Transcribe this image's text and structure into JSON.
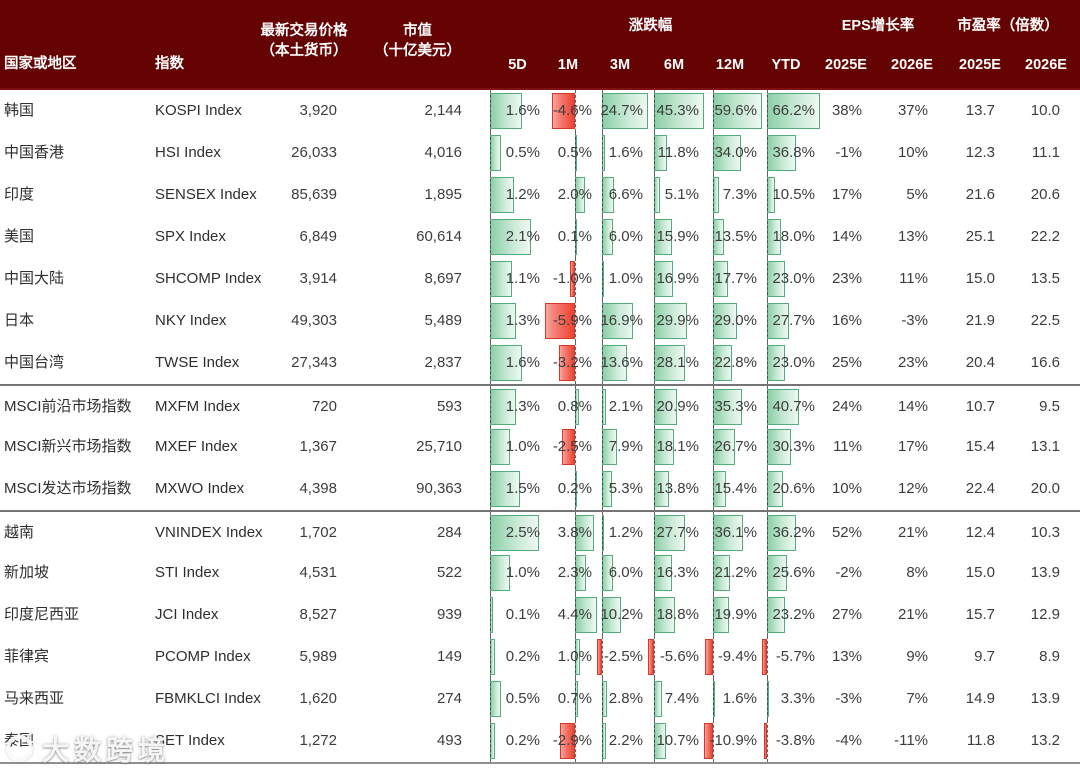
{
  "header": {
    "country": "国家或地区",
    "index": "指数",
    "price_l1": "最新交易价格",
    "price_l2": "（本土货币）",
    "mktcap_l1": "市值",
    "mktcap_l2": "（十亿美元）",
    "group_change": "涨跌幅",
    "group_eps": "EPS增长率",
    "group_pe": "市盈率（倍数）",
    "sub": {
      "d5": "5D",
      "m1": "1M",
      "m3": "3M",
      "m6": "6M",
      "m12": "12M",
      "ytd": "YTD",
      "eps1": "2025E",
      "eps2": "2026E",
      "pe1": "2025E",
      "pe2": "2026E"
    }
  },
  "chart_data": {
    "type": "table",
    "columns": [
      "国家或地区",
      "指数",
      "最新交易价格（本土货币）",
      "市值（十亿美元）",
      "涨跌幅 5D",
      "涨跌幅 1M",
      "涨跌幅 3M",
      "涨跌幅 6M",
      "涨跌幅 12M",
      "涨跌幅 YTD",
      "EPS增长率 2025E",
      "EPS增长率 2026E",
      "市盈率（倍数）2025E",
      "市盈率（倍数）2026E"
    ],
    "pct_keys": [
      "5d",
      "1m",
      "3m",
      "6m",
      "12m",
      "ytd"
    ],
    "rows": [
      {
        "region": "韩国",
        "index_name": "KOSPI Index",
        "price": "3,920",
        "mktcap": "2,144",
        "pct": [
          1.6,
          -4.6,
          24.7,
          45.3,
          59.6,
          66.2
        ],
        "eps": [
          38,
          37
        ],
        "pe": [
          13.7,
          10.0
        ],
        "section": 0
      },
      {
        "region": "中国香港",
        "index_name": "HSI Index",
        "price": "26,033",
        "mktcap": "4,016",
        "pct": [
          0.5,
          0.5,
          1.6,
          11.8,
          34.0,
          36.8
        ],
        "eps": [
          -1,
          10
        ],
        "pe": [
          12.3,
          11.1
        ],
        "section": 0
      },
      {
        "region": "印度",
        "index_name": "SENSEX Index",
        "price": "85,639",
        "mktcap": "1,895",
        "pct": [
          1.2,
          2.0,
          6.6,
          5.1,
          7.3,
          10.5
        ],
        "eps": [
          17,
          5
        ],
        "pe": [
          21.6,
          20.6
        ],
        "section": 0
      },
      {
        "region": "美国",
        "index_name": "SPX Index",
        "price": "6,849",
        "mktcap": "60,614",
        "pct": [
          2.1,
          0.1,
          6.0,
          15.9,
          13.5,
          18.0
        ],
        "eps": [
          14,
          13
        ],
        "pe": [
          25.1,
          22.2
        ],
        "section": 0
      },
      {
        "region": "中国大陆",
        "index_name": "SHCOMP Index",
        "price": "3,914",
        "mktcap": "8,697",
        "pct": [
          1.1,
          -1.0,
          1.0,
          16.9,
          17.7,
          23.0
        ],
        "eps": [
          23,
          11
        ],
        "pe": [
          15.0,
          13.5
        ],
        "section": 0
      },
      {
        "region": "日本",
        "index_name": "NKY Index",
        "price": "49,303",
        "mktcap": "5,489",
        "pct": [
          1.3,
          -5.9,
          16.9,
          29.9,
          29.0,
          27.7
        ],
        "eps": [
          16,
          -3
        ],
        "pe": [
          21.9,
          22.5
        ],
        "section": 0
      },
      {
        "region": "中国台湾",
        "index_name": "TWSE Index",
        "price": "27,343",
        "mktcap": "2,837",
        "pct": [
          1.6,
          -3.2,
          13.6,
          28.1,
          22.8,
          23.0
        ],
        "eps": [
          25,
          23
        ],
        "pe": [
          20.4,
          16.6
        ],
        "section": 0
      },
      {
        "region": "MSCI前沿市场指数",
        "index_name": "MXFM Index",
        "price": "720",
        "mktcap": "593",
        "pct": [
          1.3,
          0.8,
          2.1,
          20.9,
          35.3,
          40.7
        ],
        "eps": [
          24,
          14
        ],
        "pe": [
          10.7,
          9.5
        ],
        "section": 1
      },
      {
        "region": "MSCI新兴市场指数",
        "index_name": "MXEF Index",
        "price": "1,367",
        "mktcap": "25,710",
        "pct": [
          1.0,
          -2.5,
          7.9,
          18.1,
          26.7,
          30.3
        ],
        "eps": [
          11,
          17
        ],
        "pe": [
          15.4,
          13.1
        ],
        "section": 1
      },
      {
        "region": "MSCI发达市场指数",
        "index_name": "MXWO Index",
        "price": "4,398",
        "mktcap": "90,363",
        "pct": [
          1.5,
          0.2,
          5.3,
          13.8,
          15.4,
          20.6
        ],
        "eps": [
          10,
          12
        ],
        "pe": [
          22.4,
          20.0
        ],
        "section": 1
      },
      {
        "region": "越南",
        "index_name": "VNINDEX Index",
        "price": "1,702",
        "mktcap": "284",
        "pct": [
          2.5,
          3.8,
          1.2,
          27.7,
          36.1,
          36.2
        ],
        "eps": [
          52,
          21
        ],
        "pe": [
          12.4,
          10.3
        ],
        "section": 2
      },
      {
        "region": "新加坡",
        "index_name": "STI Index",
        "price": "4,531",
        "mktcap": "522",
        "pct": [
          1.0,
          2.3,
          6.0,
          16.3,
          21.2,
          25.6
        ],
        "eps": [
          -2,
          8
        ],
        "pe": [
          15.0,
          13.9
        ],
        "section": 2
      },
      {
        "region": "印度尼西亚",
        "index_name": "JCI Index",
        "price": "8,527",
        "mktcap": "939",
        "pct": [
          0.1,
          4.4,
          10.2,
          18.8,
          19.9,
          23.2
        ],
        "eps": [
          27,
          21
        ],
        "pe": [
          15.7,
          12.9
        ],
        "section": 2
      },
      {
        "region": "菲律宾",
        "index_name": "PCOMP Index",
        "price": "5,989",
        "mktcap": "149",
        "pct": [
          0.2,
          1.0,
          -2.5,
          -5.6,
          -9.4,
          -5.7
        ],
        "eps": [
          13,
          9
        ],
        "pe": [
          9.7,
          8.9
        ],
        "section": 2
      },
      {
        "region": "马来西亚",
        "index_name": "FBMKLCI Index",
        "price": "1,620",
        "mktcap": "274",
        "pct": [
          0.5,
          0.7,
          2.8,
          7.4,
          1.6,
          3.3
        ],
        "eps": [
          -3,
          7
        ],
        "pe": [
          14.9,
          13.9
        ],
        "section": 2
      },
      {
        "region": "泰国",
        "index_name": "SET Index",
        "price": "1,272",
        "mktcap": "493",
        "pct": [
          0.2,
          -2.9,
          2.2,
          10.7,
          -10.9,
          -3.8
        ],
        "eps": [
          -4,
          -11
        ],
        "pe": [
          11.8,
          13.2
        ],
        "section": 2
      }
    ]
  },
  "watermark": {
    "text": "大数跨境"
  },
  "colors": {
    "header_bg": "#650202",
    "header_text": "#ffffff",
    "body_text": "#3d3d3d",
    "positive_bar_fill": "#8ccfa7",
    "positive_bar_edge": "#55aa7e",
    "negative_bar_fill": "#ee4130",
    "negative_bar_edge": "#d8382a",
    "section_separator": "#757575"
  }
}
